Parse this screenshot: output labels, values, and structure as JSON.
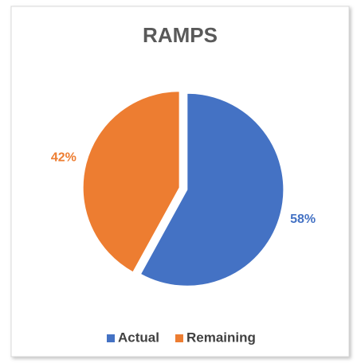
{
  "chart_data": {
    "type": "pie",
    "title": "RAMPS",
    "categories": [
      "Actual",
      "Remaining"
    ],
    "values": [
      58,
      42
    ],
    "value_labels": [
      "58%",
      "42%"
    ],
    "colors": [
      "#4472c4",
      "#ed7d31"
    ]
  }
}
